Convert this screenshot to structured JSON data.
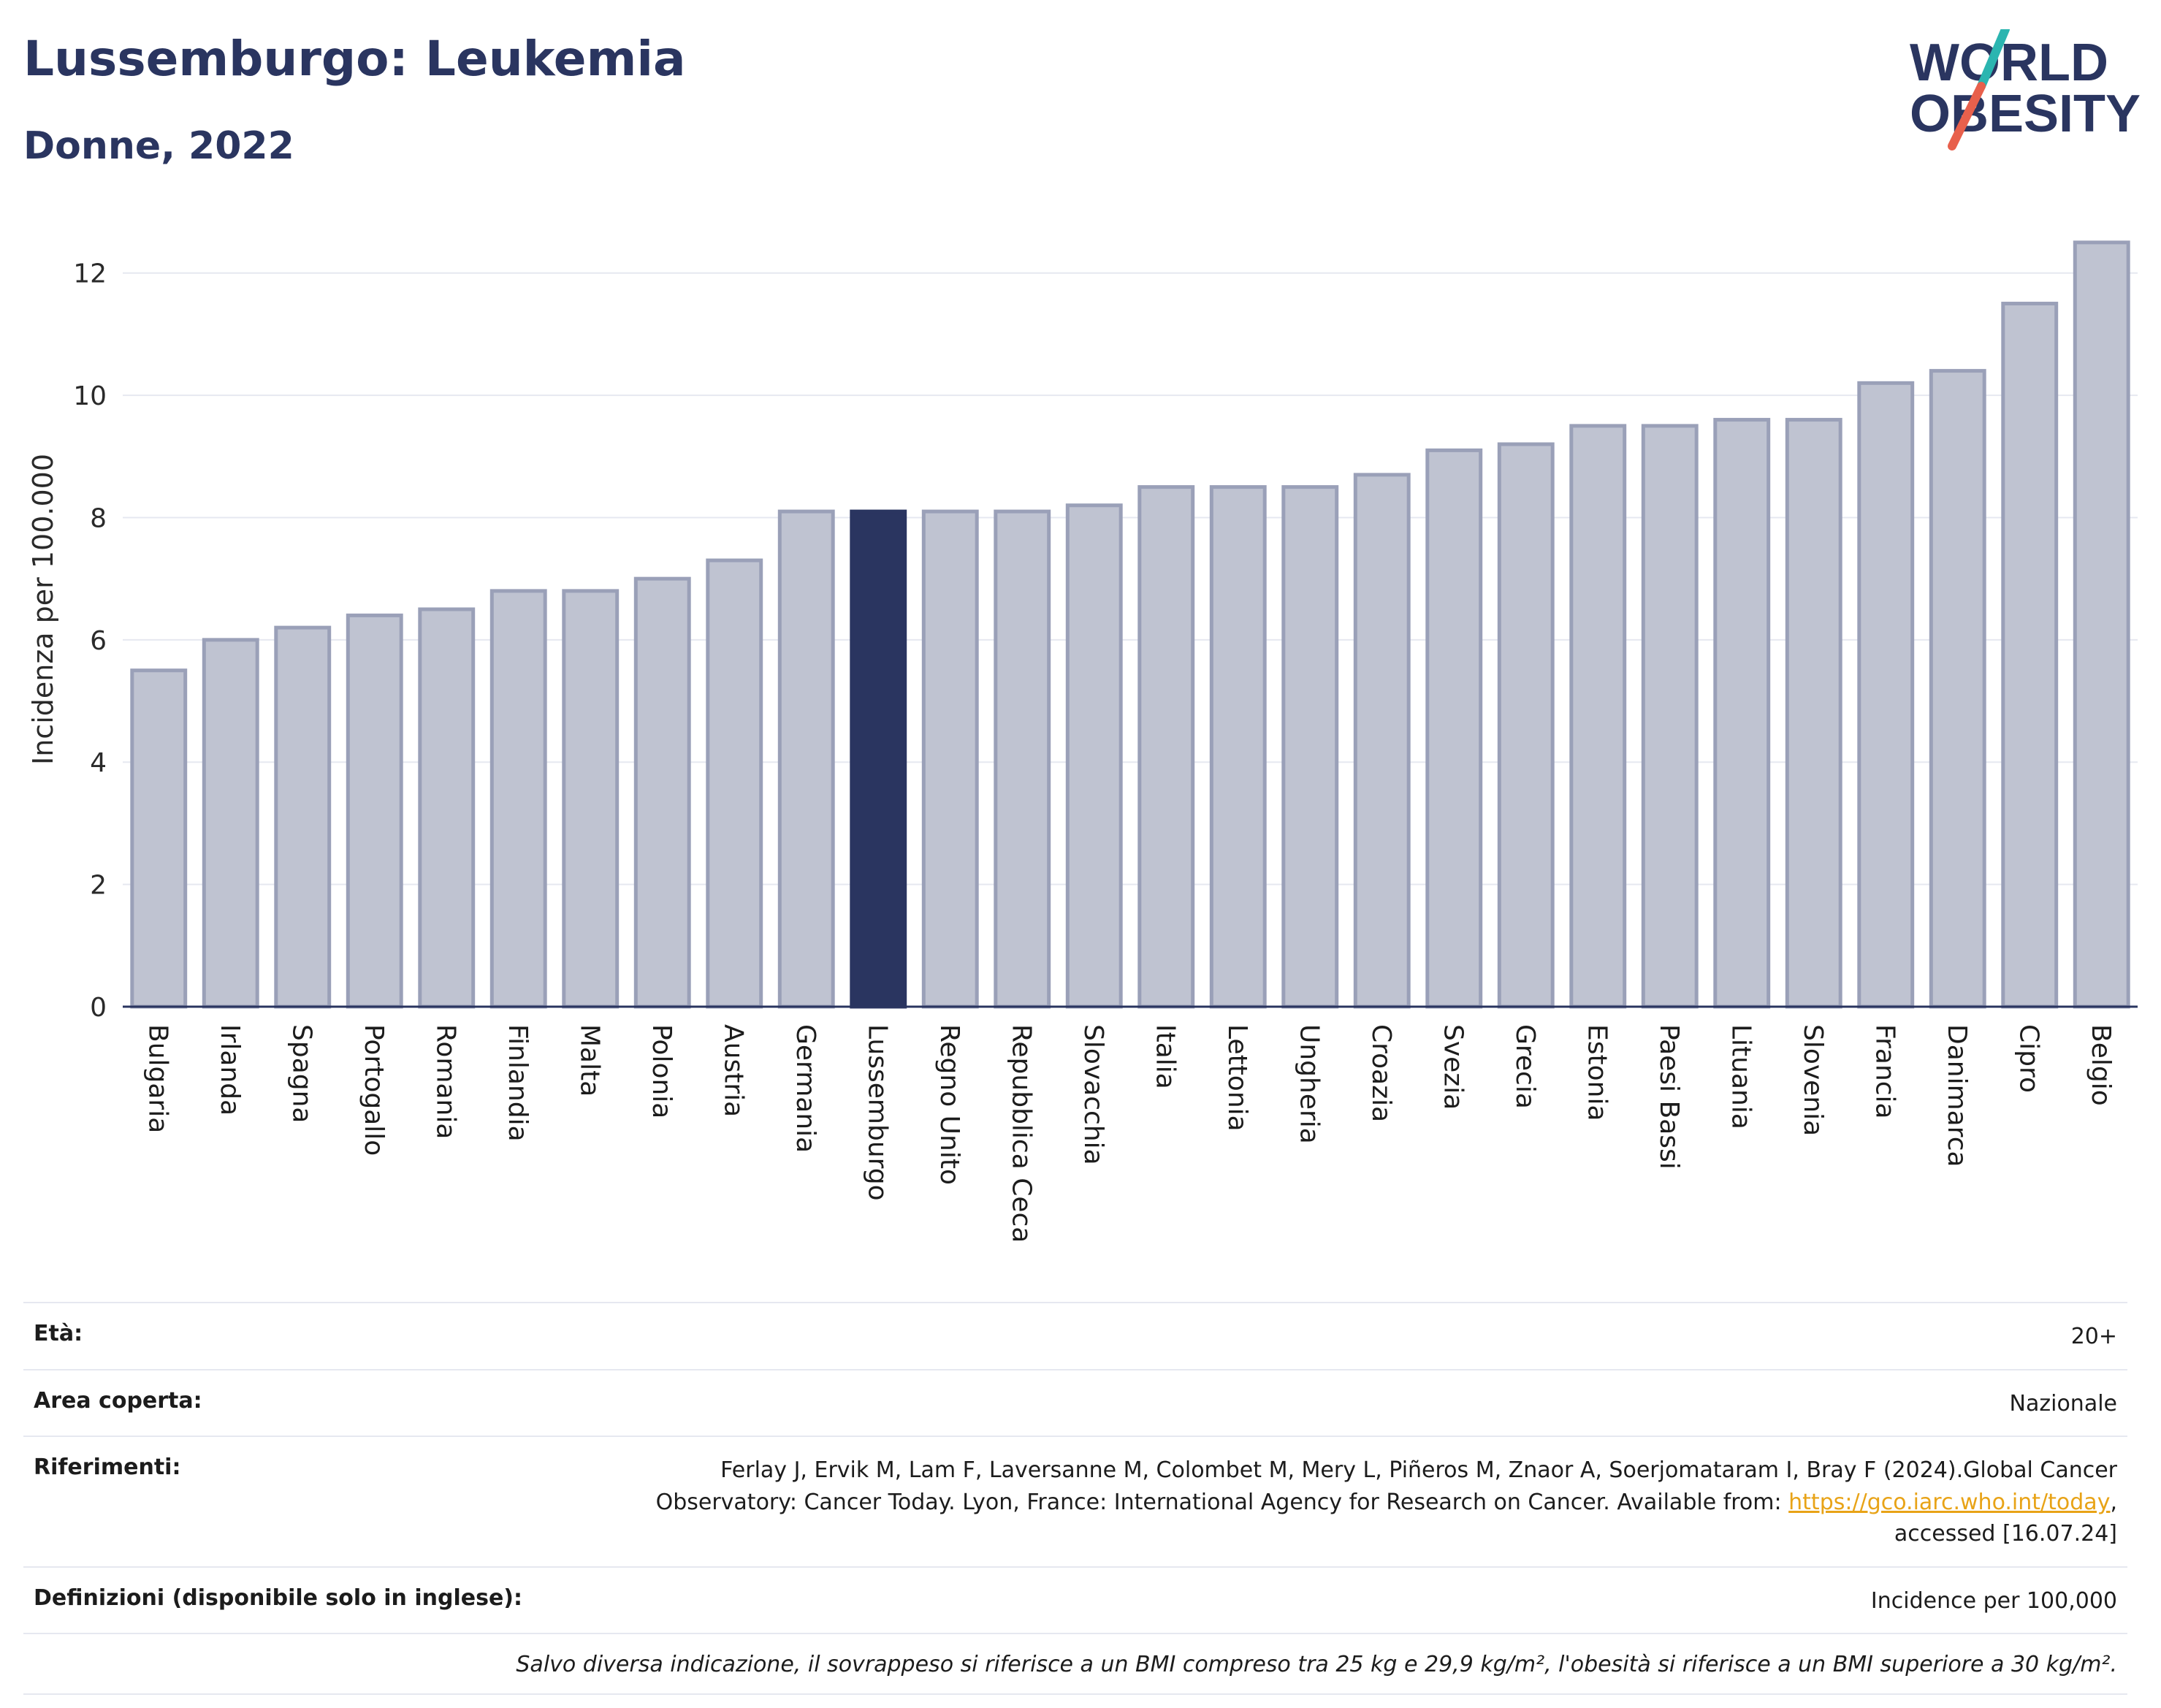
{
  "header": {
    "title": "Lussemburgo: Leukemia",
    "subtitle": "Donne, 2022"
  },
  "logo": {
    "line1": "WORLD",
    "line2": "OBESITY",
    "colors": {
      "text": "#2a3560",
      "slash_top": "#2bb5b0",
      "slash_bottom": "#e8604c"
    }
  },
  "chart_data": {
    "type": "bar",
    "ylabel": "Incidenza per 100.000",
    "ylim": [
      0,
      13
    ],
    "yticks": [
      0,
      2,
      4,
      6,
      8,
      10,
      12
    ],
    "grid": true,
    "highlight": "Lussemburgo",
    "colors": {
      "bar": "#bfc3d1",
      "bar_edge": "#9aa0b8",
      "highlight": "#2a3560",
      "grid": "#e6e8f0"
    },
    "categories": [
      "Bulgaria",
      "Irlanda",
      "Spagna",
      "Portogallo",
      "Romania",
      "Finlandia",
      "Malta",
      "Polonia",
      "Austria",
      "Germania",
      "Lussemburgo",
      "Regno Unito",
      "Repubblica Ceca",
      "Slovacchia",
      "Italia",
      "Lettonia",
      "Ungheria",
      "Croazia",
      "Svezia",
      "Grecia",
      "Estonia",
      "Paesi Bassi",
      "Lituania",
      "Slovenia",
      "Francia",
      "Danimarca",
      "Cipro",
      "Belgio"
    ],
    "values": [
      5.5,
      6.0,
      6.2,
      6.4,
      6.5,
      6.8,
      6.8,
      7.0,
      7.3,
      8.1,
      8.1,
      8.1,
      8.1,
      8.2,
      8.5,
      8.5,
      8.5,
      8.7,
      9.1,
      9.2,
      9.5,
      9.5,
      9.6,
      9.6,
      10.2,
      10.4,
      11.5,
      12.5
    ]
  },
  "meta": {
    "age_label": "Età:",
    "age_value": "20+",
    "area_label": "Area coperta:",
    "area_value": "Nazionale",
    "refs_label": "Riferimenti:",
    "refs_text1": "Ferlay J, Ervik M, Lam F, Laversanne M, Colombet M, Mery L, Piñeros M, Znaor A, Soerjomataram I, Bray F (2024).Global Cancer Observatory: Cancer Today. Lyon, France: International Agency for Research on Cancer. Available from: ",
    "refs_link": "https://gco.iarc.who.int/today",
    "refs_text2": ", accessed [16.07.24]",
    "defs_label": "Definizioni (disponibile solo in inglese):",
    "defs_value": "Incidence per 100,000",
    "note": "Salvo diversa indicazione, il sovrappeso si riferisce a un BMI compreso tra 25 kg e 29,9 kg/m², l'obesità si riferisce a un BMI superiore a 30 kg/m²."
  }
}
